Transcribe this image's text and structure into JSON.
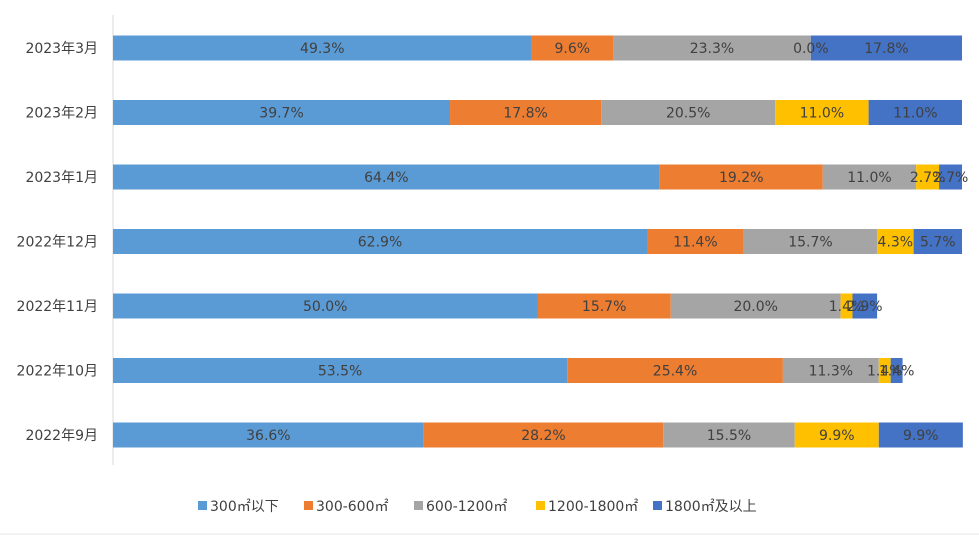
{
  "chart_data": {
    "type": "bar",
    "orientation": "horizontal",
    "stacked": true,
    "categories": [
      "2023年3月",
      "2023年2月",
      "2023年1月",
      "2022年12月",
      "2022年11月",
      "2022年10月",
      "2022年9月"
    ],
    "series": [
      {
        "name": "300㎡以下",
        "color": "#5b9bd5",
        "values": [
          49.3,
          39.7,
          64.4,
          62.9,
          50.0,
          53.5,
          36.6
        ]
      },
      {
        "name": "300-600㎡",
        "color": "#ed7d31",
        "values": [
          9.6,
          17.8,
          19.2,
          11.4,
          15.7,
          25.4,
          28.2
        ]
      },
      {
        "name": "600-1200㎡",
        "color": "#a5a5a5",
        "values": [
          23.3,
          20.5,
          11.0,
          15.7,
          20.0,
          11.3,
          15.5
        ]
      },
      {
        "name": "1200-1800㎡",
        "color": "#ffc000",
        "values": [
          0.0,
          11.0,
          2.7,
          4.3,
          1.4,
          1.4,
          9.9
        ]
      },
      {
        "name": "1800㎡及以上",
        "color": "#4472c4",
        "values": [
          17.8,
          11.0,
          2.7,
          5.7,
          2.9,
          1.4,
          9.9
        ]
      }
    ],
    "value_labels": [
      [
        "49.3%",
        "39.7%",
        "64.4%",
        "62.9%",
        "50.0%",
        "53.5%",
        "36.6%"
      ],
      [
        "9.6%",
        "17.8%",
        "19.2%",
        "11.4%",
        "15.7%",
        "25.4%",
        "28.2%"
      ],
      [
        "23.3%",
        "20.5%",
        "11.0%",
        "15.7%",
        "20.0%",
        "11.3%",
        "15.5%"
      ],
      [
        "0.0%",
        "11.0%",
        "2.7%",
        "4.3%",
        "1.4%",
        "1.4%",
        "9.9%"
      ],
      [
        "17.8%",
        "11.0%",
        "2.7%",
        "5.7%",
        "2.9%",
        "1.4%",
        "9.9%"
      ]
    ],
    "title": "",
    "xlabel": "",
    "ylabel": "",
    "xlim": [
      0,
      100
    ],
    "grid": false,
    "legend_position": "bottom"
  }
}
